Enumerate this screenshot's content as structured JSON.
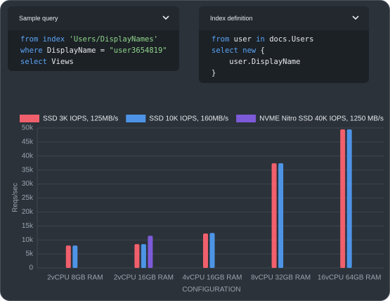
{
  "panels": [
    {
      "title": "Sample query",
      "lines": [
        [
          {
            "text": "from index ",
            "color": "#5aa4f5"
          },
          {
            "text": "'Users/DisplayNames'",
            "color": "#8fd48a"
          }
        ],
        [
          {
            "text": "where",
            "color": "#5aa4f5"
          },
          {
            "text": " DisplayName = ",
            "color": "#e6e9ec"
          },
          {
            "text": "\"user3654819\"",
            "color": "#8fd48a"
          }
        ],
        [
          {
            "text": "select",
            "color": "#5aa4f5"
          },
          {
            "text": " Views",
            "color": "#e6e9ec"
          }
        ]
      ]
    },
    {
      "title": "Index definition",
      "lines": [
        [
          {
            "text": "from",
            "color": "#5aa4f5"
          },
          {
            "text": " user ",
            "color": "#e6e9ec"
          },
          {
            "text": "in",
            "color": "#5aa4f5"
          },
          {
            "text": " docs.Users",
            "color": "#e6e9ec"
          }
        ],
        [
          {
            "text": "select new",
            "color": "#5aa4f5"
          },
          {
            "text": " {",
            "color": "#e6e9ec"
          }
        ],
        [
          {
            "text": "    user.DisplayName",
            "color": "#e6e9ec"
          }
        ],
        [
          {
            "text": "}",
            "color": "#e6e9ec"
          }
        ]
      ]
    }
  ],
  "chart_data": {
    "type": "bar",
    "categories": [
      "2vCPU 8GB RAM",
      "2vCPU 16GB RAM",
      "4vCPU 16GB RAM",
      "8vCPU 32GB RAM",
      "16vCPU 64GB RAM"
    ],
    "series": [
      {
        "name": "SSD 3K IOPS, 125MB/s",
        "color": "#f0606c",
        "values": [
          8000,
          8500,
          12300,
          37400,
          49500
        ]
      },
      {
        "name": "SSD 10K IOPS, 160MB/s",
        "color": "#4d94e6",
        "values": [
          8000,
          8500,
          12500,
          37400,
          49500
        ]
      },
      {
        "name": "NVME Nitro SSD 40K IOPS, 1250 MB/s",
        "color": "#7d5ad8",
        "values": [
          null,
          11500,
          null,
          null,
          null
        ]
      }
    ],
    "xlabel": "CONFIGURATION",
    "ylabel": "Reqs/sec",
    "ylim": [
      0,
      50000
    ],
    "yticks": [
      {
        "value": 0,
        "label": "0"
      },
      {
        "value": 5000,
        "label": "5k"
      },
      {
        "value": 10000,
        "label": "10k"
      },
      {
        "value": 15000,
        "label": "15k"
      },
      {
        "value": 20000,
        "label": "20k"
      },
      {
        "value": 25000,
        "label": "25k"
      },
      {
        "value": 30000,
        "label": "30k"
      },
      {
        "value": 35000,
        "label": "35k"
      },
      {
        "value": 40000,
        "label": "40k"
      },
      {
        "value": 45000,
        "label": "45k"
      },
      {
        "value": 50000,
        "label": "50k"
      }
    ],
    "grid": true
  }
}
